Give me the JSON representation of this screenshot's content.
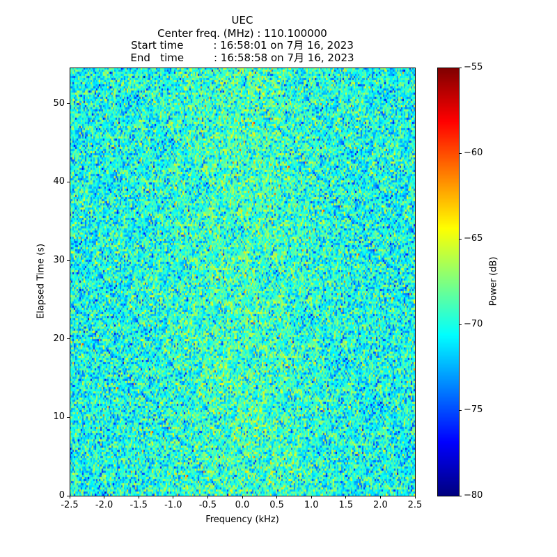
{
  "chart_data": {
    "type": "heatmap",
    "title_lines": [
      "UEC",
      "Center freq. (MHz) : 110.100000",
      "Start time         : 16:58:01 on 7月 16, 2023",
      "End   time         : 16:58:58 on 7月 16, 2023"
    ],
    "xlabel": "Frequency (kHz)",
    "ylabel": "Elapsed Time (s)",
    "xlim": [
      -2.5,
      2.5
    ],
    "ylim": [
      0,
      54.6
    ],
    "xticks": [
      "-2.5",
      "-2.0",
      "-1.5",
      "-1.0",
      "-0.5",
      "0.0",
      "0.5",
      "1.0",
      "1.5",
      "2.0",
      "2.5"
    ],
    "yticks": [
      "0",
      "10",
      "20",
      "30",
      "40",
      "50"
    ],
    "colorbar": {
      "label": "Power (dB)",
      "range": [
        -80,
        -55
      ],
      "ticks": [
        "−80",
        "−75",
        "−70",
        "−65",
        "−60",
        "−55"
      ],
      "colormap": "jet"
    },
    "data_description": "noise power roughly -76 to -62 dB, centered near -70 dB, slightly higher near 0 kHz"
  }
}
